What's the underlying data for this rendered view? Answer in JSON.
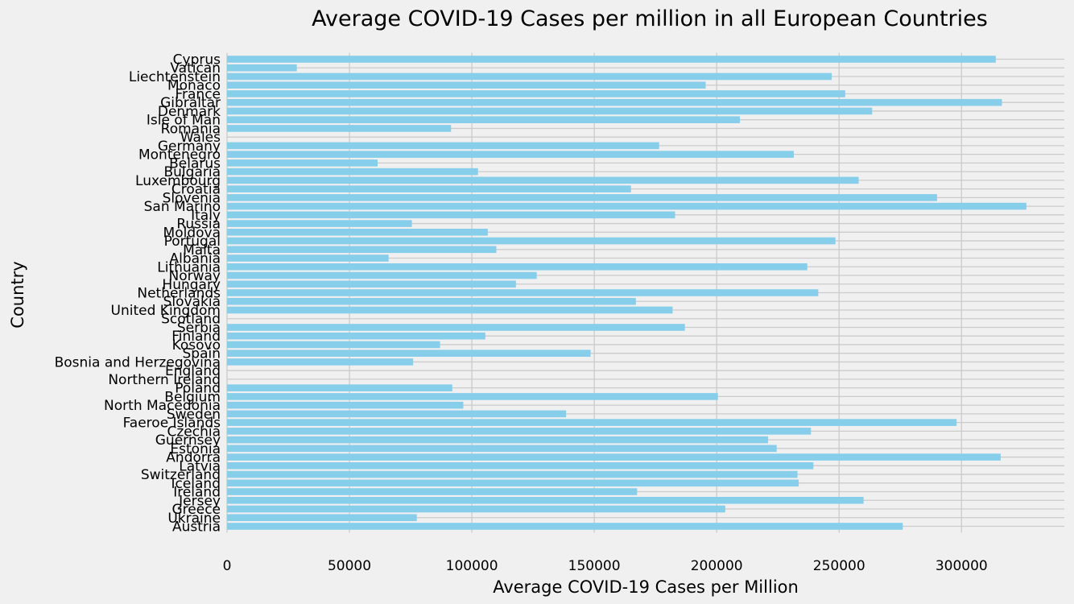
{
  "chart_data": {
    "type": "bar",
    "orientation": "horizontal",
    "title": "Average COVID-19 Cases per million in all European Countries",
    "xlabel": "Average COVID-19 Cases per Million",
    "ylabel": "Country",
    "xlim": [
      0,
      342000
    ],
    "xticks": [
      0,
      50000,
      100000,
      150000,
      200000,
      250000,
      300000
    ],
    "grid": true,
    "bar_color": "#87ceeb",
    "background_color": "#f0f0f0",
    "categories": [
      "Cyprus",
      "Vatican",
      "Liechtenstein",
      "Monaco",
      "France",
      "Gibraltar",
      "Denmark",
      "Isle of Man",
      "Romania",
      "Wales",
      "Germany",
      "Montenegro",
      "Belarus",
      "Bulgaria",
      "Luxembourg",
      "Croatia",
      "Slovenia",
      "San Marino",
      "Italy",
      "Russia",
      "Moldova",
      "Portugal",
      "Malta",
      "Albania",
      "Lithuania",
      "Norway",
      "Hungary",
      "Netherlands",
      "Slovakia",
      "United Kingdom",
      "Scotland",
      "Serbia",
      "Finland",
      "Kosovo",
      "Spain",
      "Bosnia and Herzegovina",
      "England",
      "Northern Ireland",
      "Poland",
      "Belgium",
      "North Macedonia",
      "Sweden",
      "Faeroe Islands",
      "Czechia",
      "Guernsey",
      "Estonia",
      "Andorra",
      "Latvia",
      "Switzerland",
      "Iceland",
      "Ireland",
      "Jersey",
      "Greece",
      "Ukraine",
      "Austria"
    ],
    "values": [
      314000,
      28500,
      247000,
      195500,
      252500,
      316500,
      263500,
      209500,
      91500,
      0,
      176500,
      231500,
      61500,
      102500,
      258000,
      165000,
      290000,
      326500,
      183000,
      75500,
      106500,
      248500,
      110000,
      66000,
      237000,
      126500,
      118000,
      241500,
      167000,
      182000,
      0,
      187000,
      105500,
      87000,
      148500,
      76000,
      0,
      0,
      92000,
      200500,
      96500,
      138500,
      298000,
      238500,
      221000,
      224500,
      316000,
      239500,
      233000,
      233500,
      167500,
      260000,
      203500,
      77500,
      276000
    ]
  }
}
